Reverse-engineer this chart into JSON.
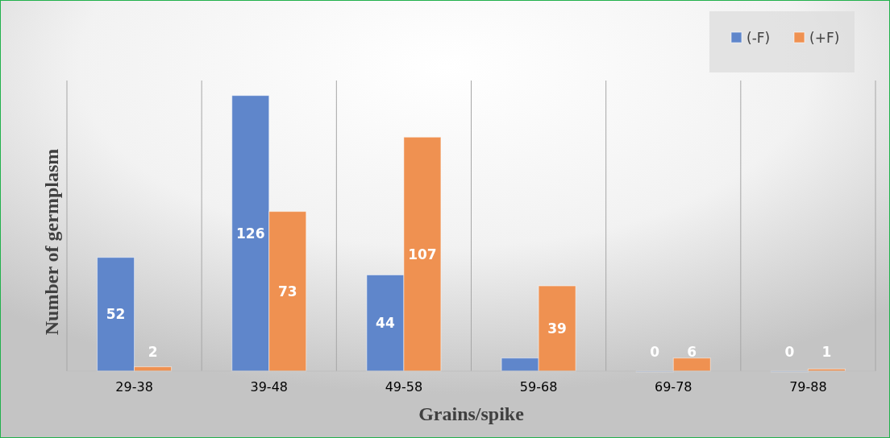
{
  "chart_data": {
    "type": "bar",
    "xlabel": "Grains/spike",
    "ylabel": "Number of germplasm",
    "categories": [
      "29-38",
      "39-48",
      "49-58",
      "59-68",
      "69-78",
      "79-88"
    ],
    "series": [
      {
        "name": "(-F)",
        "color": "#5f86cb",
        "values": [
          52,
          126,
          44,
          6,
          0,
          0
        ],
        "value_labels": [
          "52",
          "126",
          "44",
          null,
          "0",
          "0"
        ]
      },
      {
        "name": "(+F)",
        "color": "#ef9151",
        "values": [
          2,
          73,
          107,
          39,
          6,
          1
        ],
        "value_labels": [
          "2",
          "73",
          "107",
          "39",
          "6",
          "1"
        ]
      }
    ],
    "grid": "x",
    "legend": "top right"
  }
}
